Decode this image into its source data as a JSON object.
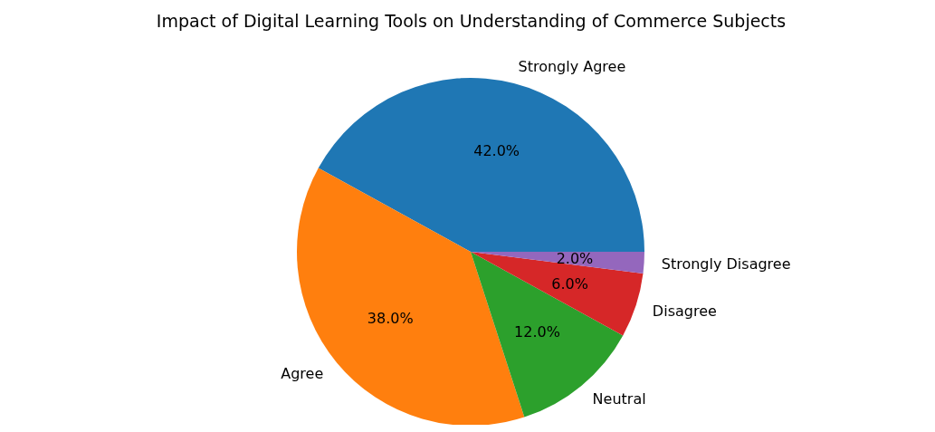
{
  "chart_data": {
    "type": "pie",
    "title": "Impact of Digital Learning Tools on Understanding of Commerce Subjects",
    "categories": [
      "Strongly Agree",
      "Agree",
      "Neutral",
      "Disagree",
      "Strongly Disagree"
    ],
    "values": [
      42,
      38,
      12,
      6,
      2
    ],
    "colors": [
      "#1f77b4",
      "#ff7f0e",
      "#2ca02c",
      "#d62728",
      "#9467bd"
    ],
    "value_labels": [
      "42.0%",
      "38.0%",
      "12.0%",
      "6.0%",
      "2.0%"
    ]
  }
}
